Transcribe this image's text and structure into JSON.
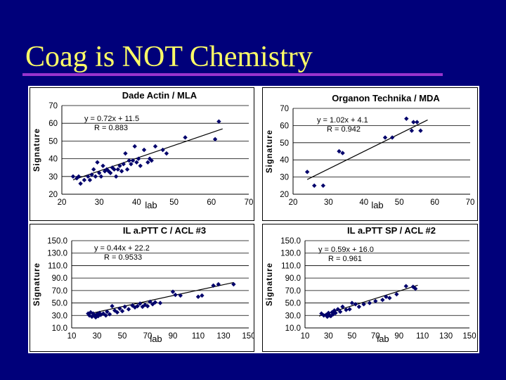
{
  "slide": {
    "title": "Coag is NOT Chemistry"
  },
  "colors": {
    "background": "#00007a",
    "title": "#ffff66",
    "rule": "#9933cc",
    "marker": "#00006b"
  },
  "chart_data": [
    {
      "type": "scatter",
      "title": "Dade Actin / MLA",
      "xlabel": "lab",
      "ylabel": "Signature",
      "xlim": [
        20,
        70
      ],
      "ylim": [
        20,
        70
      ],
      "xticks": [
        "20",
        "30",
        "40",
        "50",
        "60",
        "70"
      ],
      "yticks": [
        "20",
        "30",
        "40",
        "50",
        "60",
        "70"
      ],
      "equation": "y = 0.72x + 11.5",
      "r_value": "R = 0.883",
      "trendline": {
        "slope": 0.72,
        "intercept": 11.5,
        "x_range": [
          23,
          63
        ]
      },
      "points": [
        [
          23,
          30
        ],
        [
          24,
          29
        ],
        [
          24.5,
          30
        ],
        [
          25,
          26
        ],
        [
          26,
          28
        ],
        [
          27,
          30
        ],
        [
          27.5,
          28
        ],
        [
          28,
          31
        ],
        [
          28.5,
          34
        ],
        [
          29,
          30
        ],
        [
          29.5,
          38
        ],
        [
          30,
          32
        ],
        [
          30.5,
          30
        ],
        [
          31,
          36
        ],
        [
          31.5,
          33
        ],
        [
          32,
          34
        ],
        [
          32.5,
          33
        ],
        [
          33,
          32
        ],
        [
          33.5,
          35
        ],
        [
          34,
          34
        ],
        [
          34.5,
          30
        ],
        [
          35,
          34
        ],
        [
          35.5,
          36
        ],
        [
          36,
          33
        ],
        [
          36.5,
          37
        ],
        [
          37,
          43
        ],
        [
          37.5,
          34
        ],
        [
          38,
          39
        ],
        [
          38.5,
          37
        ],
        [
          39,
          39
        ],
        [
          39.5,
          47
        ],
        [
          40,
          38
        ],
        [
          40.5,
          40
        ],
        [
          41,
          36
        ],
        [
          42,
          45
        ],
        [
          43,
          38
        ],
        [
          43.5,
          40
        ],
        [
          44,
          39
        ],
        [
          45,
          47
        ],
        [
          47,
          45
        ],
        [
          48,
          43
        ],
        [
          53,
          52
        ],
        [
          61,
          51
        ],
        [
          62,
          61
        ]
      ],
      "grid": "horizontal"
    },
    {
      "type": "scatter",
      "title": "Organon Technika / MDA",
      "xlabel": "lab",
      "ylabel": "Signature",
      "xlim": [
        20,
        70
      ],
      "ylim": [
        20,
        70
      ],
      "xticks": [
        "20",
        "30",
        "40",
        "50",
        "60",
        "70"
      ],
      "yticks": [
        "20",
        "30",
        "40",
        "50",
        "60",
        "70"
      ],
      "equation": "y = 1.02x + 4.1",
      "r_value": "R = 0.942",
      "trendline": {
        "slope": 1.02,
        "intercept": 4.1,
        "x_range": [
          24,
          58
        ]
      },
      "points": [
        [
          24,
          33
        ],
        [
          26,
          25
        ],
        [
          28.5,
          25
        ],
        [
          33,
          45
        ],
        [
          34,
          44
        ],
        [
          46,
          53
        ],
        [
          48,
          53
        ],
        [
          52,
          64
        ],
        [
          53.5,
          57
        ],
        [
          54,
          62
        ],
        [
          55,
          62
        ],
        [
          56,
          57
        ]
      ],
      "grid": "horizontal"
    },
    {
      "type": "scatter",
      "title": "IL a.PTT C / ACL #3",
      "xlabel": "lab",
      "ylabel": "Signature",
      "xlim": [
        10,
        150
      ],
      "ylim": [
        10,
        150
      ],
      "xticks": [
        "10",
        "30",
        "50",
        "70",
        "90",
        "110",
        "130",
        "150"
      ],
      "yticks": [
        "10.0",
        "30.0",
        "50.0",
        "70.0",
        "90.0",
        "110.0",
        "130.0",
        "150.0"
      ],
      "equation": "y = 0.44x + 22.2",
      "r_value": "R = 0.9533",
      "trendline": {
        "slope": 0.44,
        "intercept": 22.2,
        "x_range": [
          22,
          138
        ]
      },
      "points": [
        [
          23,
          33
        ],
        [
          24,
          30
        ],
        [
          25,
          35
        ],
        [
          26,
          28
        ],
        [
          27,
          33
        ],
        [
          28,
          30
        ],
        [
          29,
          27
        ],
        [
          30,
          32
        ],
        [
          31,
          29
        ],
        [
          32,
          34
        ],
        [
          33,
          31
        ],
        [
          35,
          33
        ],
        [
          37,
          30
        ],
        [
          38,
          36
        ],
        [
          40,
          32
        ],
        [
          42,
          45
        ],
        [
          44,
          38
        ],
        [
          46,
          35
        ],
        [
          48,
          41
        ],
        [
          50,
          37
        ],
        [
          52,
          44
        ],
        [
          55,
          40
        ],
        [
          58,
          46
        ],
        [
          60,
          43
        ],
        [
          62,
          45
        ],
        [
          64,
          49
        ],
        [
          66,
          44
        ],
        [
          68,
          47
        ],
        [
          70,
          45
        ],
        [
          72,
          52
        ],
        [
          74,
          48
        ],
        [
          76,
          51
        ],
        [
          80,
          50
        ],
        [
          90,
          68
        ],
        [
          92,
          63
        ],
        [
          96,
          62
        ],
        [
          110,
          60
        ],
        [
          113,
          62
        ],
        [
          122,
          78
        ],
        [
          126,
          80
        ],
        [
          138,
          80
        ]
      ],
      "grid": "horizontal"
    },
    {
      "type": "scatter",
      "title": "IL a.PTT SP / ACL #2",
      "xlabel": "lab",
      "ylabel": "Signature",
      "xlim": [
        10,
        150
      ],
      "ylim": [
        10,
        150
      ],
      "xticks": [
        "10",
        "30",
        "50",
        "70",
        "90",
        "110",
        "130",
        "150"
      ],
      "yticks": [
        "10.0",
        "30.0",
        "50.0",
        "70.0",
        "90.0",
        "110.0",
        "130.0",
        "150.0"
      ],
      "equation": "y = 0.59x + 16.0",
      "r_value": "R = 0.961",
      "trendline": {
        "slope": 0.59,
        "intercept": 16.0,
        "x_range": [
          22,
          106
        ]
      },
      "points": [
        [
          24,
          33
        ],
        [
          26,
          30
        ],
        [
          28,
          31
        ],
        [
          29,
          28
        ],
        [
          30,
          34
        ],
        [
          31,
          30
        ],
        [
          32,
          29
        ],
        [
          33,
          35
        ],
        [
          34,
          32
        ],
        [
          35,
          38
        ],
        [
          36,
          34
        ],
        [
          38,
          40
        ],
        [
          40,
          36
        ],
        [
          42,
          44
        ],
        [
          45,
          39
        ],
        [
          48,
          40
        ],
        [
          50,
          50
        ],
        [
          53,
          48
        ],
        [
          56,
          44
        ],
        [
          60,
          48
        ],
        [
          65,
          50
        ],
        [
          70,
          53
        ],
        [
          76,
          55
        ],
        [
          79,
          60
        ],
        [
          82,
          58
        ],
        [
          88,
          64
        ],
        [
          96,
          77
        ],
        [
          102,
          76
        ],
        [
          104,
          73
        ]
      ],
      "grid": "horizontal"
    }
  ]
}
